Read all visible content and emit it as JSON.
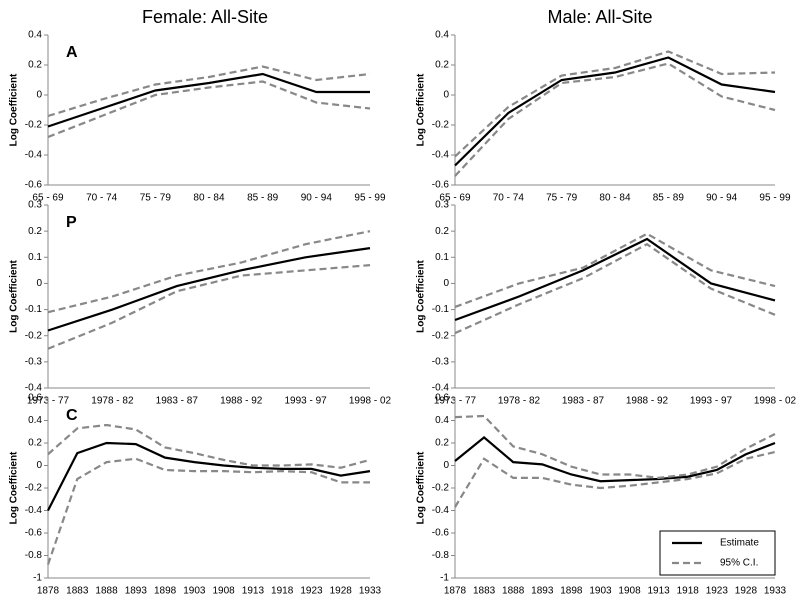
{
  "column_titles": [
    "Female: All-Site",
    "Male: All-Site"
  ],
  "chart_data": [
    {
      "type": "line",
      "panel_label": "A",
      "ylabel": "Log Coefficient",
      "categories": [
        "65 - 69",
        "70 - 74",
        "75 - 79",
        "80 - 84",
        "85 - 89",
        "90 - 94",
        "95 - 99"
      ],
      "ylim": [
        -0.6,
        0.4
      ],
      "yticks": [
        -0.6,
        -0.4,
        -0.2,
        0,
        0.2,
        0.4
      ],
      "series": [
        {
          "color": "#000000",
          "values": [
            -0.21,
            -0.09,
            0.03,
            0.08,
            0.14,
            0.02,
            0.02
          ]
        },
        {
          "color": "#888888",
          "dashed": true,
          "lower": [
            -0.28,
            -0.14,
            0.0,
            0.05,
            0.09,
            -0.05,
            -0.09
          ],
          "upper": [
            -0.14,
            -0.03,
            0.07,
            0.12,
            0.19,
            0.1,
            0.14
          ]
        }
      ]
    },
    {
      "type": "line",
      "ylabel": "Log Coefficient",
      "categories": [
        "65 - 69",
        "70 - 74",
        "75 - 79",
        "80 - 84",
        "85 - 89",
        "90 - 94",
        "95 - 99"
      ],
      "ylim": [
        -0.6,
        0.4
      ],
      "yticks": [
        -0.6,
        -0.4,
        -0.2,
        0,
        0.2,
        0.4
      ],
      "series": [
        {
          "color": "#000000",
          "values": [
            -0.47,
            -0.12,
            0.1,
            0.15,
            0.25,
            0.07,
            0.02
          ]
        },
        {
          "color": "#888888",
          "dashed": true,
          "lower": [
            -0.54,
            -0.16,
            0.08,
            0.12,
            0.21,
            -0.01,
            -0.1
          ],
          "upper": [
            -0.41,
            -0.08,
            0.13,
            0.18,
            0.29,
            0.14,
            0.15
          ]
        }
      ]
    },
    {
      "type": "line",
      "panel_label": "P",
      "ylabel": "Log Coefficient",
      "categories": [
        "1973 - 77",
        "1978 - 82",
        "1983 - 87",
        "1988 - 92",
        "1993 - 97",
        "1998 - 02"
      ],
      "ylim": [
        -0.4,
        0.3
      ],
      "yticks": [
        -0.4,
        -0.3,
        -0.2,
        -0.1,
        0,
        0.1,
        0.2,
        0.3
      ],
      "series": [
        {
          "color": "#000000",
          "values": [
            -0.18,
            -0.1,
            -0.01,
            0.05,
            0.1,
            0.135
          ]
        },
        {
          "color": "#888888",
          "dashed": true,
          "lower": [
            -0.25,
            -0.15,
            -0.03,
            0.03,
            0.05,
            0.07
          ],
          "upper": [
            -0.11,
            -0.05,
            0.03,
            0.08,
            0.15,
            0.2
          ]
        }
      ]
    },
    {
      "type": "line",
      "ylabel": "Log Coefficient",
      "categories": [
        "1973 - 77",
        "1978 - 82",
        "1983 - 87",
        "1988 - 92",
        "1993 - 97",
        "1998 - 02"
      ],
      "ylim": [
        -0.4,
        0.3
      ],
      "yticks": [
        -0.4,
        -0.3,
        -0.2,
        -0.1,
        0,
        0.1,
        0.2,
        0.3
      ],
      "series": [
        {
          "color": "#000000",
          "values": [
            -0.14,
            -0.05,
            0.05,
            0.17,
            0.0,
            -0.065
          ]
        },
        {
          "color": "#888888",
          "dashed": true,
          "lower": [
            -0.19,
            -0.08,
            0.02,
            0.15,
            -0.02,
            -0.12
          ],
          "upper": [
            -0.09,
            0.0,
            0.06,
            0.19,
            0.05,
            -0.01
          ]
        }
      ]
    },
    {
      "type": "line",
      "panel_label": "C",
      "ylabel": "Log Coefficient",
      "categories": [
        "1878",
        "1883",
        "1888",
        "1893",
        "1898",
        "1903",
        "1908",
        "1913",
        "1918",
        "1923",
        "1928",
        "1933"
      ],
      "ylim": [
        -1,
        0.6
      ],
      "yticks": [
        -1,
        -0.8,
        -0.6,
        -0.4,
        -0.2,
        0,
        0.2,
        0.4,
        0.6
      ],
      "series": [
        {
          "color": "#000000",
          "values": [
            -0.4,
            0.11,
            0.2,
            0.19,
            0.07,
            0.03,
            0.0,
            -0.02,
            -0.03,
            -0.03,
            -0.09,
            -0.05
          ]
        },
        {
          "color": "#888888",
          "dashed": true,
          "lower": [
            -0.88,
            -0.12,
            0.03,
            0.06,
            -0.04,
            -0.05,
            -0.05,
            -0.06,
            -0.05,
            -0.06,
            -0.15,
            -0.15
          ],
          "upper": [
            0.1,
            0.33,
            0.36,
            0.32,
            0.16,
            0.11,
            0.05,
            0.0,
            0.0,
            0.01,
            -0.02,
            0.05
          ]
        }
      ]
    },
    {
      "type": "line",
      "ylabel": "Log Coefficient",
      "legend": "lower right",
      "categories": [
        "1878",
        "1883",
        "1888",
        "1893",
        "1898",
        "1903",
        "1908",
        "1913",
        "1918",
        "1923",
        "1928",
        "1933"
      ],
      "ylim": [
        -1,
        0.6
      ],
      "yticks": [
        -1,
        -0.8,
        -0.6,
        -0.4,
        -0.2,
        0,
        0.2,
        0.4,
        0.6
      ],
      "series": [
        {
          "name": "Estimate",
          "color": "#000000",
          "values": [
            0.04,
            0.25,
            0.03,
            0.01,
            -0.08,
            -0.14,
            -0.13,
            -0.12,
            -0.1,
            -0.04,
            0.1,
            0.2
          ]
        },
        {
          "name": "95% C.I.",
          "color": "#888888",
          "dashed": true,
          "lower": [
            -0.37,
            0.06,
            -0.11,
            -0.11,
            -0.17,
            -0.2,
            -0.18,
            -0.15,
            -0.12,
            -0.07,
            0.06,
            0.12
          ],
          "upper": [
            0.43,
            0.44,
            0.17,
            0.1,
            -0.01,
            -0.08,
            -0.08,
            -0.11,
            -0.08,
            -0.01,
            0.15,
            0.28
          ]
        }
      ]
    }
  ]
}
